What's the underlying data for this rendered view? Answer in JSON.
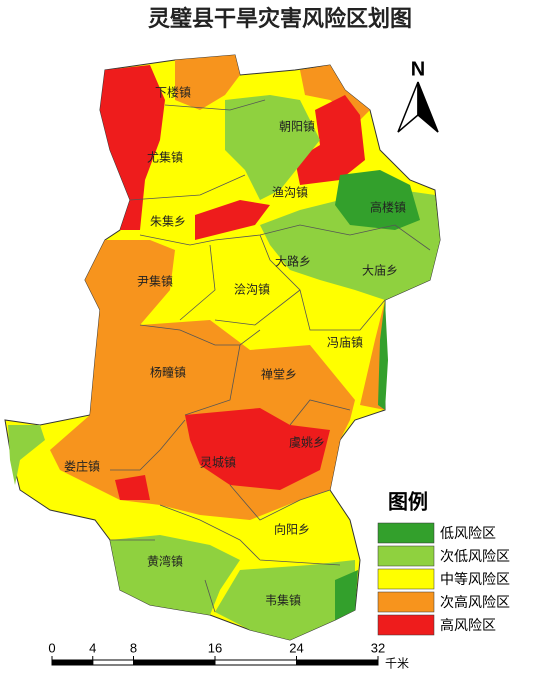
{
  "title": "灵璧县干旱灾害风险区划图",
  "north": "N",
  "towns": [
    "下楼镇",
    "尤集镇",
    "朝阳镇",
    "渔沟镇",
    "高楼镇",
    "朱集乡",
    "大路乡",
    "大庙乡",
    "尹集镇",
    "浍沟镇",
    "冯庙镇",
    "杨疃镇",
    "禅堂乡",
    "虞姚乡",
    "娄庄镇",
    "灵城镇",
    "向阳乡",
    "黄湾镇",
    "韦集镇"
  ],
  "legend": {
    "title": "图例",
    "items": [
      {
        "label": "低风险区",
        "color": "#33a02c"
      },
      {
        "label": "次低风险区",
        "color": "#8fd13f"
      },
      {
        "label": "中等风险区",
        "color": "#ffff00"
      },
      {
        "label": "次高风险区",
        "color": "#f7941d"
      },
      {
        "label": "高风险区",
        "color": "#ee1c1c"
      }
    ]
  },
  "scale": {
    "ticks": [
      0,
      4,
      8,
      16,
      24,
      32
    ],
    "unit": "千米"
  }
}
